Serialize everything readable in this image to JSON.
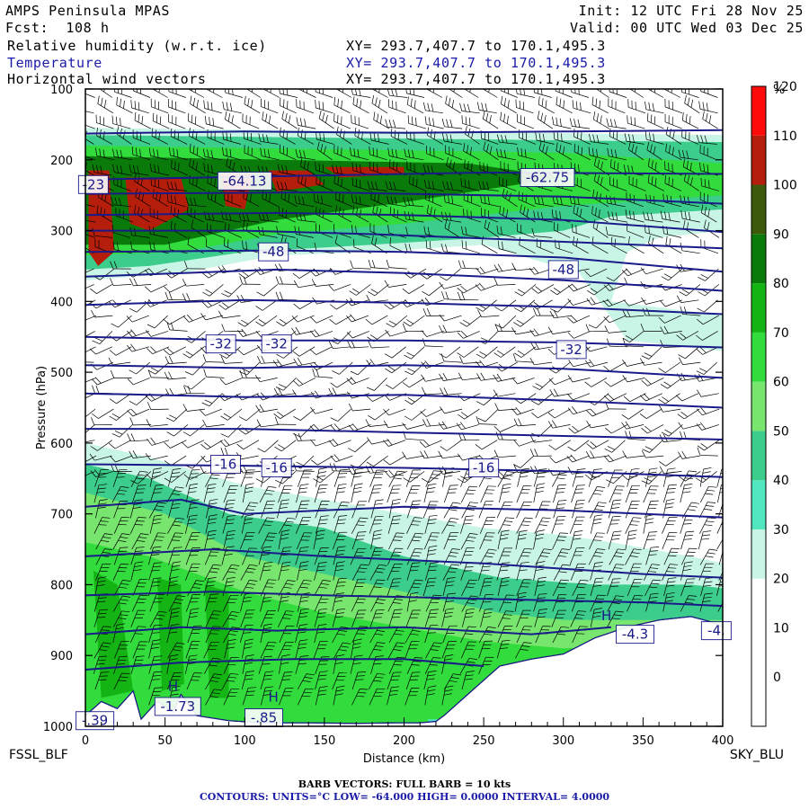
{
  "header": {
    "model": "AMPS Peninsula MPAS",
    "forecast": "Fcst:  108 h",
    "init": "Init: 12 UTC Fri 28 Nov 25",
    "valid": "Valid: 00 UTC Wed 03 Dec 25",
    "fields": [
      {
        "name": "Relative humidity (w.r.t. ice)",
        "xy": "XY= 293.7,407.7 to 170.1,495.3",
        "color": "#000000"
      },
      {
        "name": "Temperature",
        "xy": "XY= 293.7,407.7 to 170.1,495.3",
        "color": "#1a1aa8"
      },
      {
        "name": "Horizontal wind vectors",
        "xy": "XY= 293.7,407.7 to 170.1,495.3",
        "color": "#000000"
      }
    ]
  },
  "chart_data": {
    "type": "heatmap",
    "title": "AMPS Peninsula MPAS",
    "xlabel": "Distance (km)",
    "ylabel": "Pressure (hPa)",
    "xlim": [
      0,
      400
    ],
    "ylim": [
      1000,
      100
    ],
    "x_ticks": [
      0,
      50,
      100,
      150,
      200,
      250,
      300,
      350,
      400
    ],
    "y_ticks": [
      100,
      200,
      300,
      400,
      500,
      600,
      700,
      800,
      900,
      1000
    ],
    "endpoints": {
      "left": "FSSL_BLF",
      "right": "SKY_BLU"
    },
    "colorbar": {
      "unit": "%",
      "levels": [
        0,
        10,
        20,
        30,
        40,
        50,
        60,
        70,
        80,
        90,
        100,
        110,
        120
      ],
      "colors": [
        "#ffffff",
        "#ffffff",
        "#ffffff",
        "#c8f5e6",
        "#50e6be",
        "#3ccc8c",
        "#78e66e",
        "#32dc3c",
        "#14b414",
        "#0a7a0a",
        "#3c5a0a",
        "#b41e0a",
        "#ff0a0a"
      ]
    },
    "temperature_contour_labels": [
      {
        "text": "-64.13",
        "x": 100,
        "p": 230
      },
      {
        "text": "-62.75",
        "x": 290,
        "p": 225
      },
      {
        "text": "-48",
        "x": 118,
        "p": 330
      },
      {
        "text": "-48",
        "x": 300,
        "p": 355
      },
      {
        "text": "-32",
        "x": 85,
        "p": 460
      },
      {
        "text": "-32",
        "x": 120,
        "p": 460
      },
      {
        "text": "-32",
        "x": 305,
        "p": 468
      },
      {
        "text": "-16",
        "x": 88,
        "p": 630
      },
      {
        "text": "-16",
        "x": 120,
        "p": 635
      },
      {
        "text": "-16",
        "x": 250,
        "p": 635
      },
      {
        "text": "-23",
        "x": 5,
        "p": 235
      },
      {
        "text": "-1.73",
        "x": 58,
        "p": 972
      },
      {
        "text": "-.85",
        "x": 112,
        "p": 988
      },
      {
        "text": "-4.3",
        "x": 345,
        "p": 870
      },
      {
        "text": "-4.",
        "x": 396,
        "p": 865
      },
      {
        "text": "-.39",
        "x": 6,
        "p": 992
      }
    ],
    "extrema_markers": [
      {
        "text": "H",
        "x": 55,
        "p": 950
      },
      {
        "text": "H",
        "x": 118,
        "p": 965
      },
      {
        "text": "H",
        "x": 327,
        "p": 850
      }
    ],
    "barbs": {
      "full_barb_kts": 10
    },
    "contours": {
      "units": "°C",
      "low": -64.0,
      "high": 0.0,
      "interval": 4.0
    }
  },
  "footer": {
    "barb_line": "BARB VECTORS:  FULL BARB = 10 kts",
    "contour_line": "CONTOURS:  UNITS=°C  LOW= -64.000        HIGH=  0.0000        INTERVAL=   4.0000"
  }
}
